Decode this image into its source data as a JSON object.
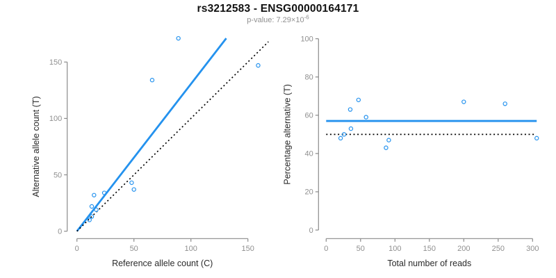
{
  "header": {
    "title": "rs3212583 - ENSG00000164171",
    "pvalue_prefix": "p-value: ",
    "pvalue_base": "7.29×10",
    "pvalue_exponent": "-6"
  },
  "colors": {
    "blue": "#2492ee",
    "black": "#000000",
    "axis": "#8a8a8a",
    "tick_label": "#8f8f8f",
    "axis_title": "#2a2a2a",
    "title": "#111111",
    "subtitle": "#909090"
  },
  "chart_data": [
    {
      "type": "scatter",
      "xlabel": "Reference allele count (C)",
      "ylabel": "Alternative allele count (T)",
      "xlim": [
        0,
        160
      ],
      "ylim": [
        0,
        172
      ],
      "xticks": [
        0,
        50,
        100,
        150
      ],
      "yticks": [
        0,
        50,
        100,
        150
      ],
      "grid": false,
      "legend": "none",
      "points": [
        [
          11,
          10
        ],
        [
          13,
          13
        ],
        [
          13,
          22
        ],
        [
          17,
          19
        ],
        [
          15,
          32
        ],
        [
          24,
          34
        ],
        [
          50,
          37
        ],
        [
          48,
          43
        ],
        [
          66,
          134
        ],
        [
          89,
          171
        ],
        [
          159,
          147
        ]
      ],
      "lines": [
        {
          "name": "regression-line",
          "x1": 0,
          "y1": 0,
          "x2": 131,
          "y2": 171,
          "style": "solid",
          "color": "blue"
        },
        {
          "name": "identity-line",
          "x1": 0,
          "y1": 0,
          "x2": 168,
          "y2": 168,
          "style": "dotted",
          "color": "black"
        }
      ]
    },
    {
      "type": "scatter",
      "xlabel": "Total number of reads",
      "ylabel": "Percentage alternative (T)",
      "xlim": [
        0,
        310
      ],
      "ylim": [
        0,
        100
      ],
      "xticks": [
        0,
        50,
        100,
        150,
        200,
        250,
        300
      ],
      "yticks": [
        0,
        20,
        40,
        60,
        80,
        100
      ],
      "grid": false,
      "legend": "none",
      "points": [
        [
          21,
          48
        ],
        [
          26,
          50
        ],
        [
          35,
          63
        ],
        [
          36,
          53
        ],
        [
          47,
          68
        ],
        [
          58,
          59
        ],
        [
          87,
          43
        ],
        [
          91,
          47
        ],
        [
          200,
          67
        ],
        [
          260,
          66
        ],
        [
          306,
          48
        ]
      ],
      "lines": [
        {
          "name": "mean-line",
          "x1": 0,
          "y1": 57,
          "x2": 306,
          "y2": 57,
          "style": "solid",
          "color": "blue"
        },
        {
          "name": "expected-line",
          "x1": 0,
          "y1": 50,
          "x2": 303,
          "y2": 50,
          "style": "dotted",
          "color": "black"
        }
      ]
    }
  ]
}
